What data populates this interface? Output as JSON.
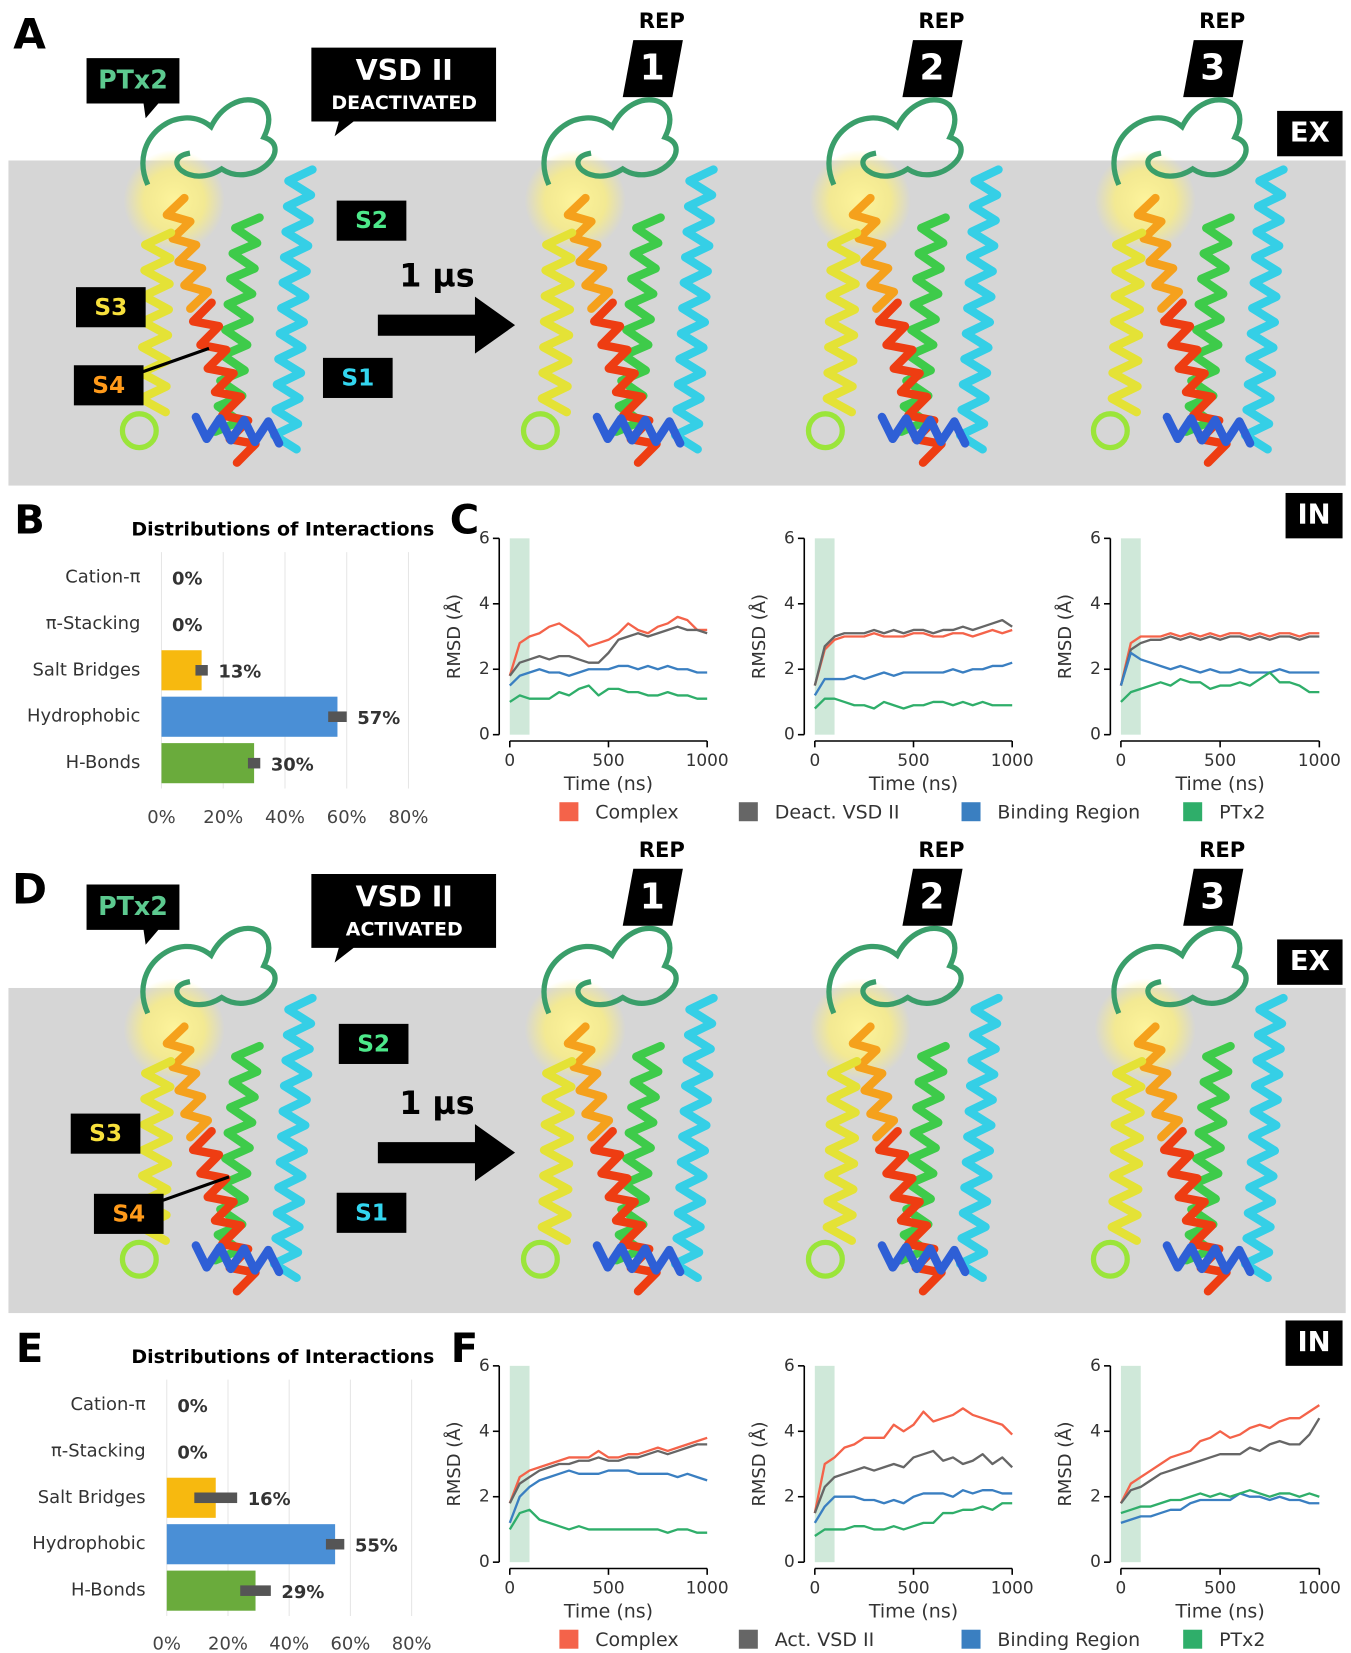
{
  "structure_rows": [
    {
      "letter": "A",
      "ptx": "PTx2",
      "vsd_title": "VSD II",
      "vsd_state": "DEACTIVATED",
      "segments": [
        "S1",
        "S2",
        "S3",
        "S4"
      ],
      "duration": "1 µs",
      "reps": [
        {
          "tag": "REP",
          "num": "1"
        },
        {
          "tag": "REP",
          "num": "2"
        },
        {
          "tag": "REP",
          "num": "3"
        }
      ],
      "ex": "EX"
    },
    {
      "letter": "D",
      "ptx": "PTx2",
      "vsd_title": "VSD II",
      "vsd_state": "ACTIVATED",
      "segments": [
        "S1",
        "S2",
        "S3",
        "S4"
      ],
      "duration": "1 µs",
      "reps": [
        {
          "tag": "REP",
          "num": "1"
        },
        {
          "tag": "REP",
          "num": "2"
        },
        {
          "tag": "REP",
          "num": "3"
        }
      ],
      "ex": "EX"
    }
  ],
  "chart_rows": [
    {
      "bar_letter": "B",
      "line_letter": "C",
      "in": "IN"
    },
    {
      "bar_letter": "E",
      "line_letter": "F",
      "in": "IN"
    }
  ],
  "chart_data": [
    {
      "type": "bar",
      "orientation": "horizontal",
      "title": "Distributions of Interactions",
      "categories": [
        "Cation-π",
        "π-Stacking",
        "Salt Bridges",
        "Hydrophobic",
        "H-Bonds"
      ],
      "values": [
        0,
        0,
        13,
        57,
        30
      ],
      "errors": [
        null,
        null,
        2,
        3,
        2
      ],
      "value_labels": [
        "0%",
        "0%",
        "13%",
        "57%",
        "30%"
      ],
      "colors": [
        null,
        null,
        "#f7b90f",
        "#4a8fd6",
        "#6aab3c"
      ],
      "xlim": [
        0,
        80
      ],
      "xticks": [
        {
          "value": 0,
          "label": "0%"
        },
        {
          "value": 20,
          "label": "20%"
        },
        {
          "value": 40,
          "label": "40%"
        },
        {
          "value": 60,
          "label": "60%"
        },
        {
          "value": 80,
          "label": "80%"
        }
      ],
      "grid": true
    },
    {
      "type": "line",
      "xlabel": "Time (ns)",
      "ylabel": "RMSD (Å)",
      "x": [
        0,
        50,
        100,
        150,
        200,
        250,
        300,
        350,
        400,
        450,
        500,
        550,
        600,
        650,
        700,
        750,
        800,
        850,
        900,
        950,
        1000
      ],
      "xlim": [
        0,
        1000
      ],
      "ylim": [
        0,
        6
      ],
      "xticks": [
        0,
        500,
        1000
      ],
      "yticks": [
        0,
        2,
        4,
        6
      ],
      "shaded_span": [
        0,
        100
      ],
      "series": [
        {
          "name": "Complex",
          "color": "#f4634a",
          "values": [
            [
              1.8,
              2.8,
              3.0,
              3.1,
              3.3,
              3.4,
              3.2,
              3.0,
              2.7,
              2.8,
              2.9,
              3.1,
              3.4,
              3.2,
              3.1,
              3.3,
              3.4,
              3.6,
              3.5,
              3.2,
              3.2
            ],
            [
              1.5,
              2.6,
              2.9,
              3.0,
              3.0,
              3.0,
              3.1,
              3.0,
              3.0,
              3.0,
              3.1,
              3.1,
              3.0,
              3.0,
              3.1,
              3.1,
              3.0,
              3.1,
              3.2,
              3.1,
              3.2
            ],
            [
              1.5,
              2.8,
              3.0,
              3.0,
              3.0,
              3.1,
              3.0,
              3.1,
              3.0,
              3.1,
              3.0,
              3.1,
              3.1,
              3.0,
              3.1,
              3.0,
              3.1,
              3.1,
              3.0,
              3.1,
              3.1
            ]
          ]
        },
        {
          "name": "Deact. VSD II",
          "color": "#666666",
          "values": [
            [
              1.8,
              2.2,
              2.3,
              2.4,
              2.3,
              2.4,
              2.4,
              2.3,
              2.2,
              2.2,
              2.5,
              2.9,
              3.0,
              3.1,
              3.0,
              3.1,
              3.2,
              3.3,
              3.2,
              3.2,
              3.1
            ],
            [
              1.5,
              2.7,
              3.0,
              3.1,
              3.1,
              3.1,
              3.2,
              3.1,
              3.2,
              3.1,
              3.2,
              3.2,
              3.1,
              3.2,
              3.2,
              3.3,
              3.2,
              3.3,
              3.4,
              3.5,
              3.3
            ],
            [
              1.5,
              2.6,
              2.8,
              2.9,
              2.9,
              3.0,
              2.9,
              3.0,
              2.9,
              3.0,
              2.9,
              3.0,
              3.0,
              2.9,
              3.0,
              2.9,
              3.0,
              3.0,
              2.9,
              3.0,
              3.0
            ]
          ]
        },
        {
          "name": "Binding Region",
          "color": "#3a7fc1",
          "values": [
            [
              1.5,
              1.8,
              1.9,
              2.0,
              1.9,
              1.9,
              1.8,
              1.9,
              2.0,
              2.0,
              2.0,
              2.1,
              2.1,
              2.0,
              2.1,
              2.0,
              2.1,
              2.0,
              2.0,
              1.9,
              1.9
            ],
            [
              1.2,
              1.7,
              1.7,
              1.7,
              1.8,
              1.7,
              1.8,
              1.9,
              1.8,
              1.9,
              1.9,
              1.9,
              1.9,
              1.9,
              2.0,
              1.9,
              2.0,
              2.0,
              2.1,
              2.1,
              2.2
            ],
            [
              1.5,
              2.5,
              2.3,
              2.2,
              2.1,
              2.0,
              2.1,
              2.0,
              1.9,
              2.0,
              1.9,
              1.9,
              2.0,
              1.9,
              1.9,
              1.9,
              2.0,
              1.9,
              1.9,
              1.9,
              1.9
            ]
          ]
        },
        {
          "name": "PTx2",
          "color": "#2fae6a",
          "values": [
            [
              1.0,
              1.2,
              1.1,
              1.1,
              1.1,
              1.3,
              1.2,
              1.4,
              1.5,
              1.2,
              1.4,
              1.4,
              1.3,
              1.3,
              1.2,
              1.2,
              1.3,
              1.2,
              1.2,
              1.1,
              1.1
            ],
            [
              0.8,
              1.1,
              1.1,
              1.0,
              0.9,
              0.9,
              0.8,
              1.0,
              0.9,
              0.8,
              0.9,
              0.9,
              1.0,
              1.0,
              0.9,
              1.0,
              0.9,
              1.0,
              0.9,
              0.9,
              0.9
            ],
            [
              1.0,
              1.3,
              1.4,
              1.5,
              1.6,
              1.5,
              1.7,
              1.6,
              1.6,
              1.4,
              1.5,
              1.5,
              1.6,
              1.5,
              1.7,
              1.9,
              1.6,
              1.6,
              1.5,
              1.3,
              1.3
            ]
          ]
        }
      ]
    },
    {
      "type": "bar",
      "orientation": "horizontal",
      "title": "Distributions of Interactions",
      "categories": [
        "Cation-π",
        "π-Stacking",
        "Salt Bridges",
        "Hydrophobic",
        "H-Bonds"
      ],
      "values": [
        0,
        0,
        16,
        55,
        29
      ],
      "errors": [
        null,
        null,
        7,
        3,
        5
      ],
      "value_labels": [
        "0%",
        "0%",
        "16%",
        "55%",
        "29%"
      ],
      "colors": [
        null,
        null,
        "#f7b90f",
        "#4a8fd6",
        "#6aab3c"
      ],
      "xlim": [
        0,
        80
      ],
      "xticks": [
        {
          "value": 0,
          "label": "0%"
        },
        {
          "value": 20,
          "label": "20%"
        },
        {
          "value": 40,
          "label": "40%"
        },
        {
          "value": 60,
          "label": "60%"
        },
        {
          "value": 80,
          "label": "80%"
        }
      ],
      "grid": true
    },
    {
      "type": "line",
      "xlabel": "Time (ns)",
      "ylabel": "RMSD (Å)",
      "x": [
        0,
        50,
        100,
        150,
        200,
        250,
        300,
        350,
        400,
        450,
        500,
        550,
        600,
        650,
        700,
        750,
        800,
        850,
        900,
        950,
        1000
      ],
      "xlim": [
        0,
        1000
      ],
      "ylim": [
        0,
        6
      ],
      "xticks": [
        0,
        500,
        1000
      ],
      "yticks": [
        0,
        2,
        4,
        6
      ],
      "shaded_span": [
        0,
        100
      ],
      "series": [
        {
          "name": "Complex",
          "color": "#f4634a",
          "values": [
            [
              1.8,
              2.6,
              2.8,
              2.9,
              3.0,
              3.1,
              3.2,
              3.2,
              3.2,
              3.4,
              3.2,
              3.2,
              3.3,
              3.3,
              3.4,
              3.5,
              3.4,
              3.5,
              3.6,
              3.7,
              3.8
            ],
            [
              1.5,
              3.0,
              3.2,
              3.5,
              3.6,
              3.8,
              3.8,
              3.8,
              4.2,
              4.0,
              4.2,
              4.6,
              4.3,
              4.4,
              4.5,
              4.7,
              4.5,
              4.4,
              4.3,
              4.2,
              3.9
            ],
            [
              1.8,
              2.4,
              2.6,
              2.8,
              3.0,
              3.2,
              3.3,
              3.4,
              3.7,
              3.8,
              4.0,
              3.8,
              3.9,
              4.1,
              4.2,
              4.1,
              4.3,
              4.4,
              4.4,
              4.6,
              4.8
            ]
          ]
        },
        {
          "name": "Act. VSD II",
          "color": "#666666",
          "values": [
            [
              1.8,
              2.4,
              2.6,
              2.8,
              2.9,
              3.0,
              3.0,
              3.1,
              3.1,
              3.2,
              3.1,
              3.1,
              3.2,
              3.2,
              3.3,
              3.4,
              3.3,
              3.4,
              3.5,
              3.6,
              3.6
            ],
            [
              1.5,
              2.3,
              2.6,
              2.7,
              2.8,
              2.9,
              2.8,
              2.9,
              3.0,
              2.9,
              3.2,
              3.3,
              3.4,
              3.1,
              3.2,
              3.0,
              3.1,
              3.3,
              3.0,
              3.2,
              2.9
            ],
            [
              1.8,
              2.2,
              2.3,
              2.5,
              2.7,
              2.8,
              2.9,
              3.0,
              3.1,
              3.2,
              3.3,
              3.3,
              3.3,
              3.5,
              3.4,
              3.6,
              3.7,
              3.6,
              3.6,
              3.9,
              4.4
            ]
          ]
        },
        {
          "name": "Binding Region",
          "color": "#3a7fc1",
          "values": [
            [
              1.2,
              2.0,
              2.3,
              2.5,
              2.6,
              2.7,
              2.8,
              2.7,
              2.7,
              2.7,
              2.8,
              2.8,
              2.8,
              2.7,
              2.7,
              2.7,
              2.7,
              2.6,
              2.7,
              2.6,
              2.5
            ],
            [
              1.2,
              1.7,
              2.0,
              2.0,
              2.0,
              1.9,
              1.9,
              1.8,
              1.9,
              1.8,
              2.0,
              2.1,
              2.1,
              2.1,
              2.0,
              2.2,
              2.1,
              2.2,
              2.2,
              2.1,
              2.1
            ],
            [
              1.2,
              1.3,
              1.4,
              1.4,
              1.5,
              1.6,
              1.6,
              1.8,
              1.9,
              1.9,
              1.9,
              1.9,
              2.1,
              2.0,
              2.0,
              1.9,
              2.0,
              1.9,
              1.9,
              1.8,
              1.8
            ]
          ]
        },
        {
          "name": "PTx2",
          "color": "#2fae6a",
          "values": [
            [
              1.0,
              1.5,
              1.6,
              1.3,
              1.2,
              1.1,
              1.0,
              1.1,
              1.0,
              1.0,
              1.0,
              1.0,
              1.0,
              1.0,
              1.0,
              1.0,
              0.9,
              1.0,
              1.0,
              0.9,
              0.9
            ],
            [
              0.8,
              1.0,
              1.0,
              1.0,
              1.1,
              1.1,
              1.0,
              1.0,
              1.1,
              1.0,
              1.1,
              1.2,
              1.2,
              1.5,
              1.5,
              1.6,
              1.6,
              1.7,
              1.6,
              1.8,
              1.8
            ],
            [
              1.5,
              1.6,
              1.7,
              1.7,
              1.8,
              1.9,
              1.9,
              2.0,
              2.1,
              2.0,
              2.1,
              2.0,
              2.1,
              2.2,
              2.1,
              2.0,
              2.1,
              2.1,
              2.0,
              2.1,
              2.0
            ]
          ]
        }
      ]
    }
  ]
}
